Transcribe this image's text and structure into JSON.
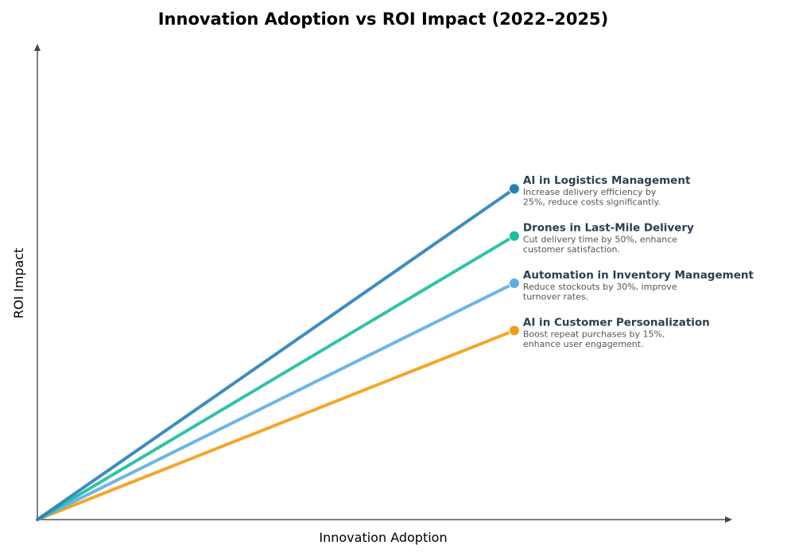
{
  "chart_data": {
    "type": "line",
    "title": "Innovation Adoption vs ROI Impact (2022–2025)",
    "xlabel": "Innovation Adoption",
    "ylabel": "ROI Impact",
    "xlim": [
      0,
      1
    ],
    "ylim": [
      0,
      1
    ],
    "grid": false,
    "ticks": false,
    "series": [
      {
        "name": "AI in Logistics Management",
        "desc": [
          "Increase delivery efficiency by",
          "25%, reduce costs significantly."
        ],
        "x": [
          0,
          0.7
        ],
        "y": [
          0,
          0.7
        ],
        "color": "#2980b9"
      },
      {
        "name": "Drones in Last-Mile Delivery",
        "desc": [
          "Cut delivery time by 50%, enhance",
          "customer satisfaction."
        ],
        "x": [
          0,
          0.7
        ],
        "y": [
          0,
          0.6
        ],
        "color": "#1abc9c"
      },
      {
        "name": "Automation in Inventory Management",
        "desc": [
          "Reduce stockouts by 30%, improve",
          "turnover rates."
        ],
        "x": [
          0,
          0.7
        ],
        "y": [
          0,
          0.5
        ],
        "color": "#5dade2"
      },
      {
        "name": "AI in Customer Personalization",
        "desc": [
          "Boost repeat purchases by 15%,",
          "enhance user engagement."
        ],
        "x": [
          0,
          0.7
        ],
        "y": [
          0,
          0.4
        ],
        "color": "#f39c12"
      }
    ]
  }
}
